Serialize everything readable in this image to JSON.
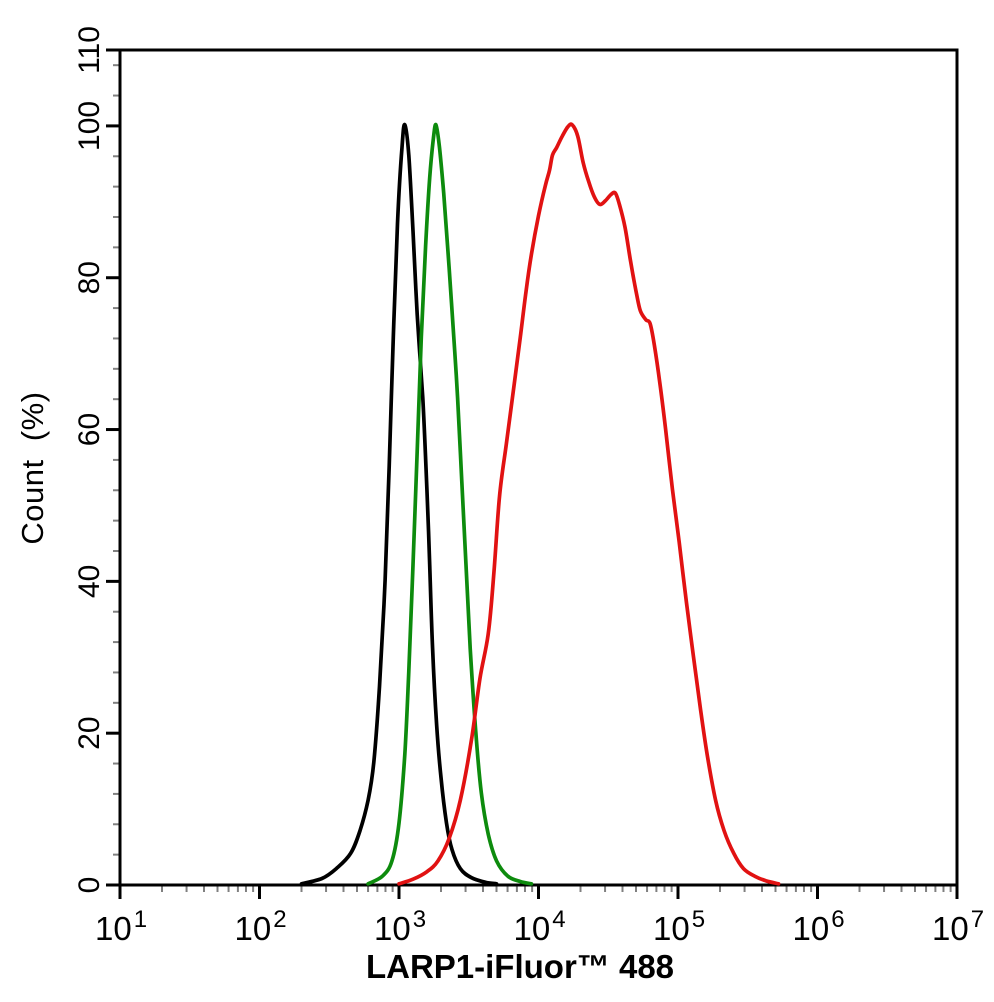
{
  "figure": {
    "background_color": "#ffffff",
    "frame_color": "#000000",
    "minor_tick_color": "#808080"
  },
  "chart_data": {
    "type": "line",
    "subtype": "flow-cytometry-histogram-overlay",
    "title": "",
    "xlabel": "LARP1-iFluor™ 488",
    "ylabel": "Count  (%)",
    "x_scale": "log10",
    "x_range": [
      10,
      10000000
    ],
    "ylim": [
      0,
      110
    ],
    "grid": "off",
    "legend": "none",
    "x_tick_base": "10",
    "x_major_tick_exponents": [
      1,
      2,
      3,
      4,
      5,
      6,
      7
    ],
    "x_minor_tick_mantissas": [
      2,
      3,
      4,
      5,
      6,
      7,
      8,
      9
    ],
    "y_major_ticks": [
      0,
      20,
      40,
      60,
      80,
      100,
      110
    ],
    "y_minor_tick_step": 4,
    "series": [
      {
        "name": "black-curve",
        "color": "#000000",
        "peak_x": 1100,
        "peak_y": 100,
        "points": [
          [
            200,
            0
          ],
          [
            280,
            0.7
          ],
          [
            355,
            2
          ],
          [
            450,
            4
          ],
          [
            525,
            7
          ],
          [
            600,
            11
          ],
          [
            660,
            16
          ],
          [
            725,
            26
          ],
          [
            795,
            40
          ],
          [
            850,
            55
          ],
          [
            910,
            72
          ],
          [
            975,
            87
          ],
          [
            1050,
            97
          ],
          [
            1100,
            100
          ],
          [
            1175,
            96
          ],
          [
            1260,
            86
          ],
          [
            1350,
            75
          ],
          [
            1480,
            64
          ],
          [
            1585,
            52
          ],
          [
            1660,
            42
          ],
          [
            1740,
            31
          ],
          [
            1860,
            21
          ],
          [
            2000,
            14
          ],
          [
            2190,
            8
          ],
          [
            2400,
            4.5
          ],
          [
            2750,
            2
          ],
          [
            3310,
            0.8
          ],
          [
            4170,
            0.2
          ],
          [
            5000,
            0
          ]
        ]
      },
      {
        "name": "green-curve",
        "color": "#0d8b0d",
        "peak_x": 1840,
        "peak_y": 100,
        "points": [
          [
            600,
            0
          ],
          [
            760,
            1
          ],
          [
            890,
            3
          ],
          [
            1000,
            8
          ],
          [
            1100,
            17
          ],
          [
            1175,
            28
          ],
          [
            1260,
            42
          ],
          [
            1350,
            57
          ],
          [
            1445,
            72
          ],
          [
            1550,
            84
          ],
          [
            1660,
            93
          ],
          [
            1760,
            98
          ],
          [
            1840,
            100
          ],
          [
            1950,
            97
          ],
          [
            2090,
            91
          ],
          [
            2290,
            81
          ],
          [
            2510,
            70
          ],
          [
            2630,
            64
          ],
          [
            2820,
            53
          ],
          [
            3020,
            42
          ],
          [
            3240,
            31
          ],
          [
            3550,
            20
          ],
          [
            3890,
            12
          ],
          [
            4370,
            6.5
          ],
          [
            5010,
            3
          ],
          [
            6030,
            1
          ],
          [
            7410,
            0.3
          ],
          [
            8900,
            0
          ]
        ]
      },
      {
        "name": "red-curve",
        "color": "#e11212",
        "peak_x": 17400,
        "peak_y": 100,
        "points": [
          [
            1000,
            0
          ],
          [
            1260,
            0.6
          ],
          [
            1585,
            1.6
          ],
          [
            1900,
            3
          ],
          [
            2290,
            6
          ],
          [
            2750,
            11
          ],
          [
            3310,
            19
          ],
          [
            3800,
            27
          ],
          [
            4370,
            33
          ],
          [
            4790,
            41
          ],
          [
            5250,
            51
          ],
          [
            5890,
            58
          ],
          [
            6610,
            65
          ],
          [
            7410,
            72
          ],
          [
            8130,
            78
          ],
          [
            8910,
            83
          ],
          [
            10000,
            88
          ],
          [
            11200,
            92
          ],
          [
            12000,
            94
          ],
          [
            12600,
            96
          ],
          [
            13500,
            97
          ],
          [
            14800,
            98.5
          ],
          [
            16200,
            99.7
          ],
          [
            17400,
            100
          ],
          [
            19100,
            98.5
          ],
          [
            20900,
            95
          ],
          [
            22900,
            92.5
          ],
          [
            25100,
            90.5
          ],
          [
            27500,
            89.5
          ],
          [
            30200,
            90
          ],
          [
            33100,
            90.8
          ],
          [
            35500,
            91
          ],
          [
            38000,
            89.5
          ],
          [
            41700,
            86.5
          ],
          [
            45700,
            82
          ],
          [
            50100,
            78
          ],
          [
            53700,
            75.5
          ],
          [
            58900,
            74.3
          ],
          [
            63100,
            73.8
          ],
          [
            67600,
            71
          ],
          [
            74100,
            66
          ],
          [
            81300,
            60
          ],
          [
            91200,
            52
          ],
          [
            102000,
            45
          ],
          [
            115000,
            37
          ],
          [
            129000,
            30
          ],
          [
            145000,
            23
          ],
          [
            162000,
            17
          ],
          [
            186000,
            11
          ],
          [
            214000,
            7
          ],
          [
            251000,
            4
          ],
          [
            295000,
            2
          ],
          [
            355000,
            1
          ],
          [
            427000,
            0.4
          ],
          [
            525000,
            0
          ]
        ]
      }
    ]
  }
}
